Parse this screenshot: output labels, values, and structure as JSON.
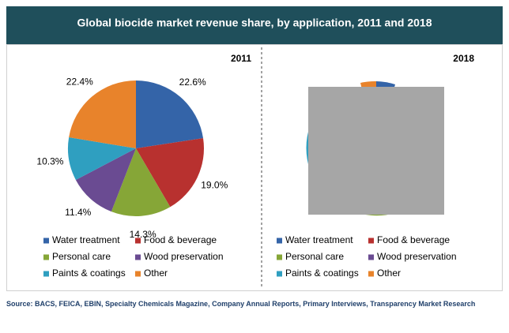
{
  "header": {
    "title": "Global biocide market revenue share, by application, 2011 and 2018"
  },
  "chart_data": [
    {
      "type": "pie",
      "title": "2011",
      "categories": [
        "Water treatment",
        "Food & beverage",
        "Personal care",
        "Wood preservation",
        "Paints & coatings",
        "Other"
      ],
      "values": [
        22.6,
        19.0,
        14.3,
        11.4,
        10.3,
        22.4
      ],
      "value_labels": [
        "22.6%",
        "19.0%",
        "14.3%",
        "11.4%",
        "10.3%",
        "22.4%"
      ],
      "colors": [
        "#3464a8",
        "#b8312f",
        "#86a637",
        "#6a4b92",
        "#2f9fc0",
        "#e8832b"
      ]
    },
    {
      "type": "pie",
      "title": "2018",
      "categories": [
        "Water treatment",
        "Food & beverage",
        "Personal care",
        "Wood preservation",
        "Paints & coatings",
        "Other"
      ],
      "colors": [
        "#3464a8",
        "#b8312f",
        "#86a637",
        "#6a4b92",
        "#2f9fc0",
        "#e8832b"
      ]
    }
  ],
  "source": "Source: BACS, FEICA, EBIN, Specialty Chemicals Magazine, Company Annual Reports, Primary Interviews, Transparency Market Research"
}
